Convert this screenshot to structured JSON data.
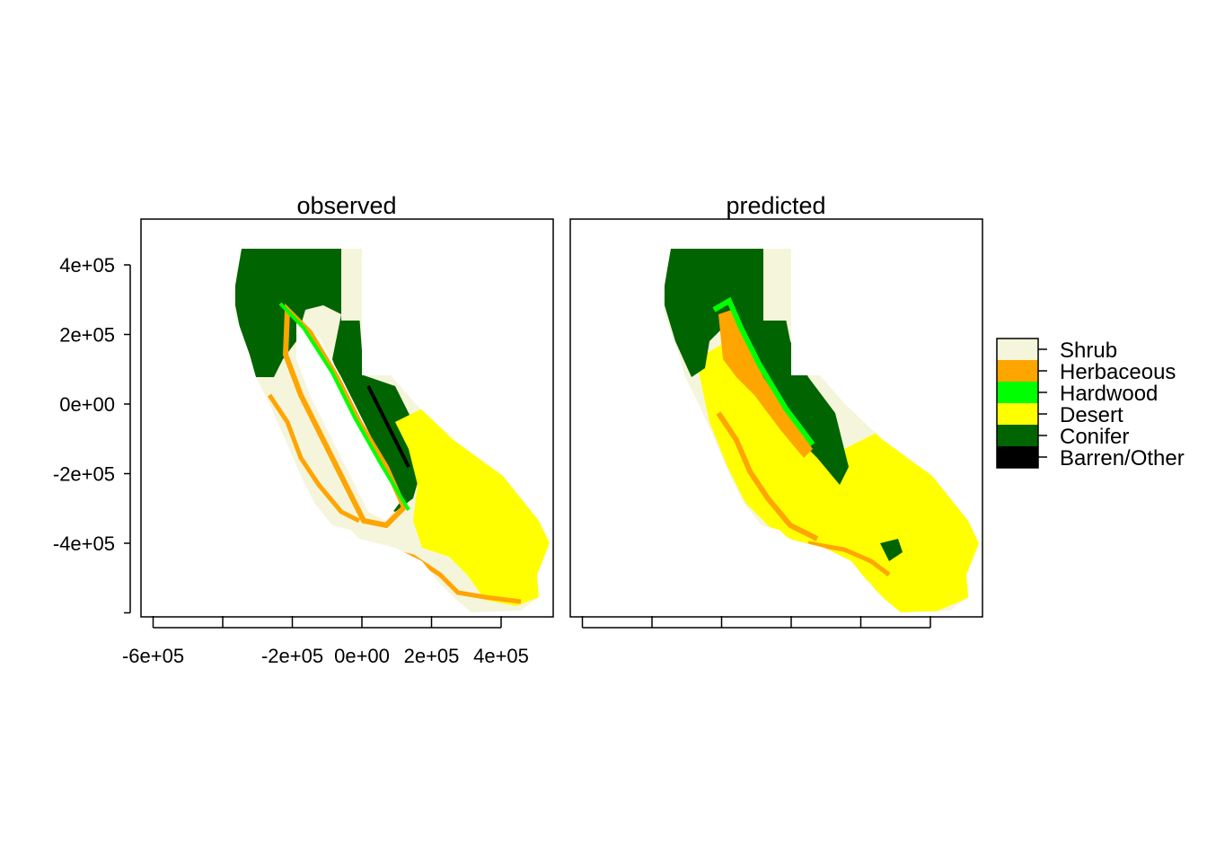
{
  "panels": [
    {
      "title": "observed"
    },
    {
      "title": "predicted"
    }
  ],
  "x_axis": {
    "ticks": [
      -600000,
      -400000,
      -200000,
      0,
      200000,
      400000
    ],
    "labels": [
      "-6e+05",
      "",
      "-2e+05",
      "0e+00",
      "2e+05",
      "4e+05"
    ]
  },
  "y_axis": {
    "ticks": [
      400000,
      200000,
      0,
      -200000,
      -400000,
      -600000
    ],
    "labels": [
      "4e+05",
      "2e+05",
      "0e+00",
      "-2e+05",
      "-4e+05",
      ""
    ]
  },
  "legend": [
    {
      "label": "Shrub",
      "color": "#F5F5DC"
    },
    {
      "label": "Herbaceous",
      "color": "#FFA500"
    },
    {
      "label": "Hardwood",
      "color": "#00FF00"
    },
    {
      "label": "Desert",
      "color": "#FFFF00"
    },
    {
      "label": "Conifer",
      "color": "#006400"
    },
    {
      "label": "Barren/Other",
      "color": "#000000"
    }
  ],
  "colors": {
    "shrub": "#F5F5DC",
    "herbaceous": "#FFA500",
    "hardwood": "#00FF00",
    "desert": "#FFFF00",
    "conifer": "#006400",
    "barren": "#000000"
  }
}
